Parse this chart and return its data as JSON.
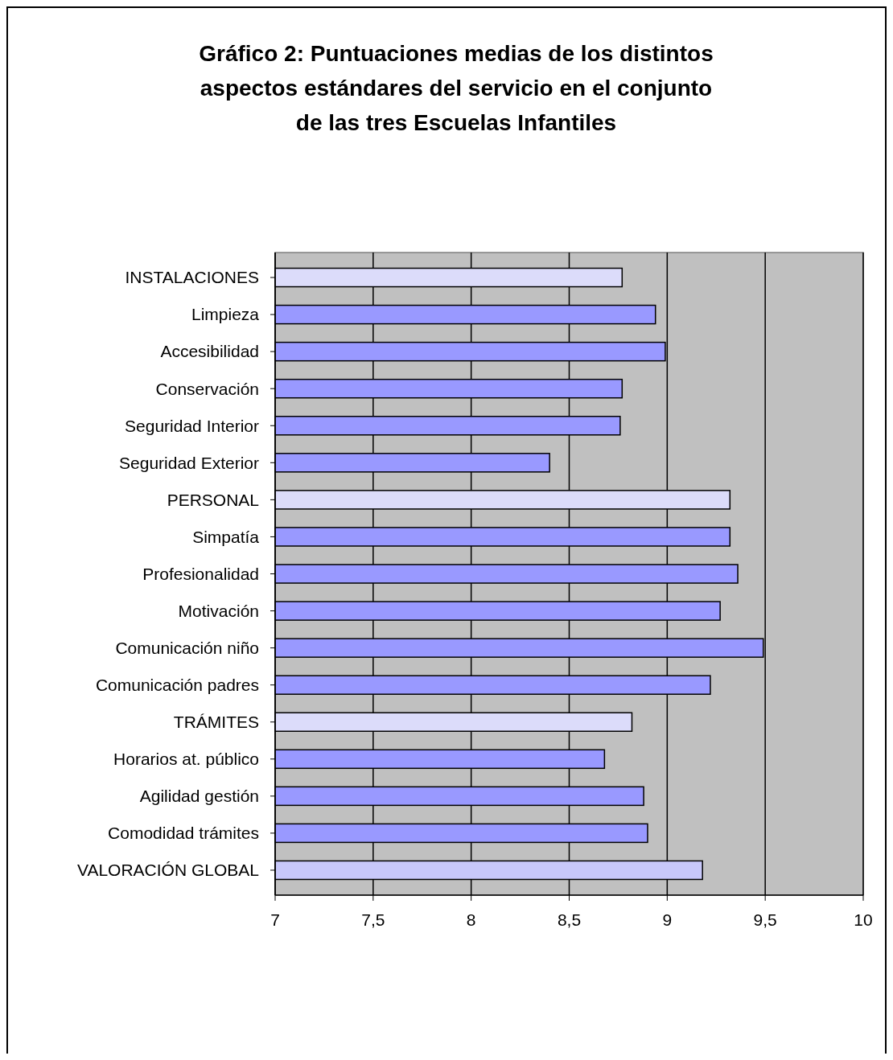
{
  "chart_data": {
    "type": "bar",
    "orientation": "horizontal",
    "title": "Gráfico 2: Puntuaciones medias de los distintos aspectos estándares del servicio en el conjunto de las tres Escuelas Infantiles",
    "categories": [
      "INSTALACIONES",
      "Limpieza",
      "Accesibilidad",
      "Conservación",
      "Seguridad Interior",
      "Seguridad Exterior",
      "PERSONAL",
      "Simpatía",
      "Profesionalidad",
      "Motivación",
      "Comunicación niño",
      "Comunicación padres",
      "TRÁMITES",
      "Horarios at. público",
      "Agilidad gestión",
      "Comodidad trámites",
      "VALORACIÓN GLOBAL"
    ],
    "values": [
      8.77,
      8.94,
      8.99,
      8.77,
      8.76,
      8.4,
      9.32,
      9.32,
      9.36,
      9.27,
      9.49,
      9.22,
      8.82,
      8.68,
      8.88,
      8.9,
      9.18
    ],
    "colors": [
      "#dcdcfa",
      "#9999ff",
      "#9999ff",
      "#9999ff",
      "#9999ff",
      "#9999ff",
      "#dcdcfa",
      "#9999ff",
      "#9999ff",
      "#9999ff",
      "#9999ff",
      "#9999ff",
      "#dcdcfa",
      "#9999ff",
      "#9999ff",
      "#9999ff",
      "#c8c8fa"
    ],
    "xlim": [
      7,
      10
    ],
    "xticks": [
      7,
      {
        "value": 7.5,
        "label": "7,5"
      },
      8,
      {
        "value": 8.5,
        "label": "8,5"
      },
      9,
      {
        "value": 9.5,
        "label": "9,5"
      },
      10
    ],
    "grid": "x"
  }
}
